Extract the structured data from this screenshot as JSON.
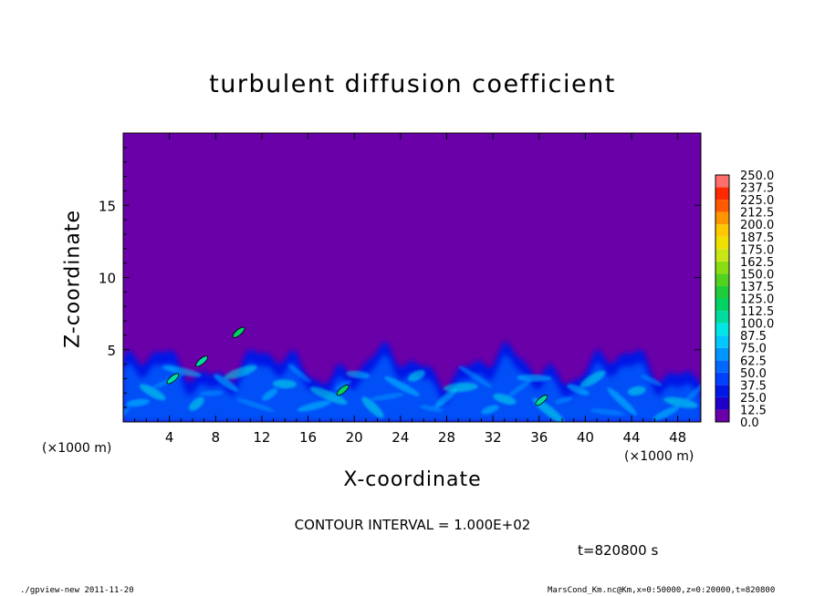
{
  "chart_data": {
    "type": "heatmap",
    "title": "turbulent diffusion coefficient",
    "xlabel": "X-coordinate",
    "ylabel": "Z-coordinate",
    "x_unit_label": "(×1000 m)",
    "y_unit_label": "(×1000 m)",
    "x_ticks": [
      4,
      8,
      12,
      16,
      20,
      24,
      28,
      32,
      36,
      40,
      44,
      48
    ],
    "y_ticks": [
      5,
      10,
      15
    ],
    "xlim": [
      0,
      50
    ],
    "ylim": [
      0,
      20
    ],
    "colorbar": {
      "levels": [
        "0.0",
        "12.5",
        "25.0",
        "37.5",
        "50.0",
        "62.5",
        "75.0",
        "87.5",
        "100.0",
        "112.5",
        "125.0",
        "137.5",
        "150.0",
        "162.5",
        "175.0",
        "187.5",
        "200.0",
        "212.5",
        "225.0",
        "237.5",
        "250.0"
      ],
      "colors": [
        "#6a00a8",
        "#1e00c8",
        "#0018e6",
        "#0040ff",
        "#0068ff",
        "#0096ff",
        "#00c8ff",
        "#00e6e6",
        "#00dca0",
        "#00d264",
        "#1ecc3c",
        "#50d21e",
        "#8cdc14",
        "#c8e614",
        "#f0e000",
        "#ffc800",
        "#ff9600",
        "#ff5a00",
        "#ff2800",
        "#ff6e6e"
      ]
    },
    "background_value": 0.0,
    "features": [
      {
        "x": 10.0,
        "z": 6.2,
        "value": 120
      },
      {
        "x": 4.3,
        "z": 3.0,
        "value": 110
      },
      {
        "x": 6.8,
        "z": 4.2,
        "value": 100
      },
      {
        "x": 19.0,
        "z": 2.2,
        "value": 120
      },
      {
        "x": 36.2,
        "z": 1.5,
        "value": 100
      }
    ]
  },
  "contour_interval": "CONTOUR INTERVAL = 1.000E+02",
  "time_label": "t=820800 s",
  "footer_left": "./gpview-new  2011-11-20",
  "footer_right": "MarsCond_Km.nc@Km,x=0:50000,z=0:20000,t=820800"
}
